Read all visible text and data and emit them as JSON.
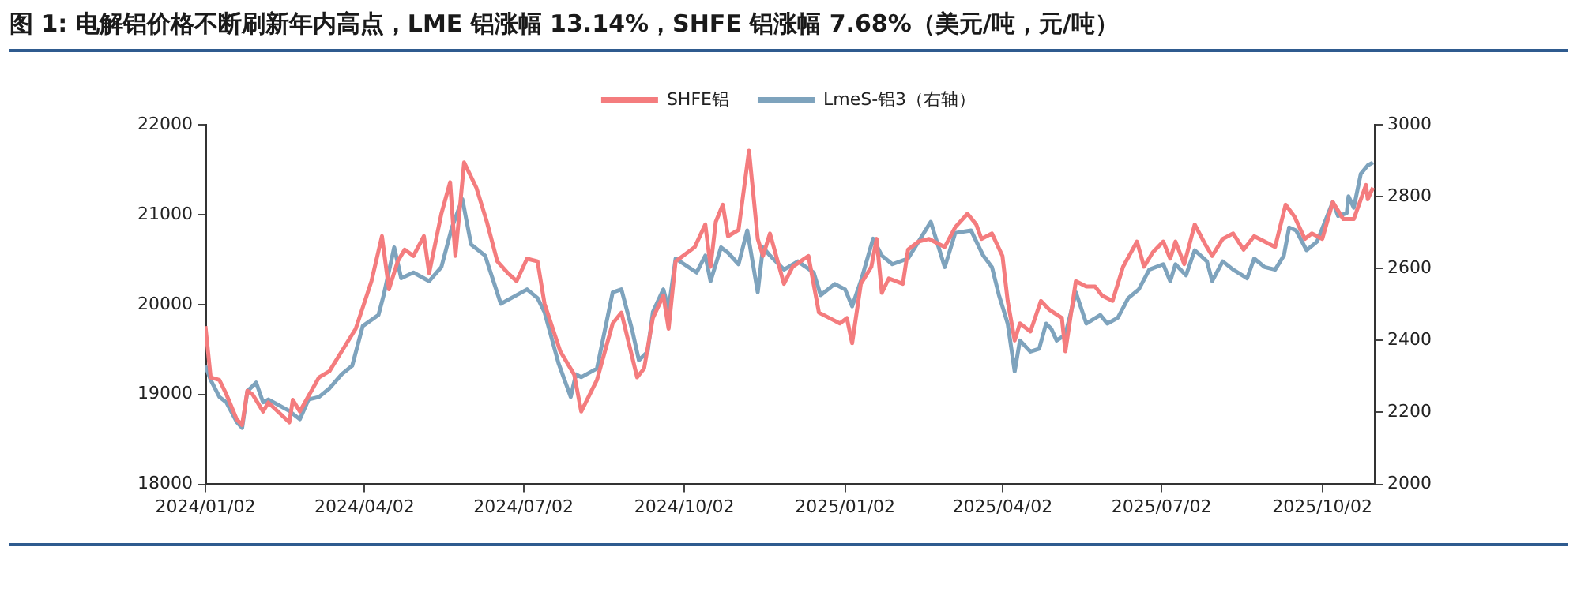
{
  "chart_data": {
    "type": "line",
    "title": "图 1: 电解铝价格不断刷新年内高点，LME 铝涨幅 13.14%，SHFE 铝涨幅 7.68%（美元/吨，元/吨）",
    "series": [
      {
        "name": "SHFE铝",
        "color": "#f47c7e",
        "axis": "y",
        "x": [
          "2024-01-02",
          "2024-01-05",
          "2024-01-10",
          "2024-01-14",
          "2024-01-20",
          "2024-01-23",
          "2024-01-26",
          "2024-01-29",
          "2024-02-04",
          "2024-02-07",
          "2024-02-19",
          "2024-02-21",
          "2024-02-25",
          "2024-03-07",
          "2024-03-13",
          "2024-03-20",
          "2024-03-28",
          "2024-04-06",
          "2024-04-12",
          "2024-04-16",
          "2024-04-21",
          "2024-04-25",
          "2024-04-30",
          "2024-05-06",
          "2024-05-09",
          "2024-05-16",
          "2024-05-21",
          "2024-05-24",
          "2024-05-29",
          "2024-06-02",
          "2024-06-05",
          "2024-06-11",
          "2024-06-17",
          "2024-06-23",
          "2024-06-28",
          "2024-07-04",
          "2024-07-10",
          "2024-07-14",
          "2024-07-23",
          "2024-07-31",
          "2024-08-04",
          "2024-08-13",
          "2024-08-22",
          "2024-08-27",
          "2024-09-05",
          "2024-09-09",
          "2024-09-14",
          "2024-09-20",
          "2024-09-23",
          "2024-09-27",
          "2024-10-08",
          "2024-10-14",
          "2024-10-17",
          "2024-10-20",
          "2024-10-24",
          "2024-10-27",
          "2024-11-02",
          "2024-11-08",
          "2024-11-13",
          "2024-11-16",
          "2024-11-20",
          "2024-11-28",
          "2024-12-03",
          "2024-12-12",
          "2024-12-18",
          "2024-12-24",
          "2024-12-30",
          "2025-01-03",
          "2025-01-06",
          "2025-01-11",
          "2025-01-17",
          "2025-01-20",
          "2025-01-23",
          "2025-01-27",
          "2025-02-04",
          "2025-02-07",
          "2025-02-13",
          "2025-02-19",
          "2025-02-28",
          "2025-03-06",
          "2025-03-13",
          "2025-03-18",
          "2025-03-21",
          "2025-03-27",
          "2025-04-02",
          "2025-04-05",
          "2025-04-09",
          "2025-04-12",
          "2025-04-18",
          "2025-04-24",
          "2025-04-29",
          "2025-05-06",
          "2025-05-08",
          "2025-05-14",
          "2025-05-20",
          "2025-05-25",
          "2025-05-29",
          "2025-06-04",
          "2025-06-10",
          "2025-06-18",
          "2025-06-22",
          "2025-06-27",
          "2025-07-03",
          "2025-07-07",
          "2025-07-10",
          "2025-07-15",
          "2025-07-21",
          "2025-07-27",
          "2025-07-31",
          "2025-08-06",
          "2025-08-12",
          "2025-08-18",
          "2025-08-24",
          "2025-08-30",
          "2025-09-05",
          "2025-09-11",
          "2025-09-16",
          "2025-09-22",
          "2025-09-26",
          "2025-10-02",
          "2025-10-08",
          "2025-10-14",
          "2025-10-20",
          "2025-10-27",
          "2025-10-28",
          "2025-10-31"
        ],
        "values": [
          19760,
          19190,
          19160,
          19000,
          18720,
          18660,
          19040,
          19000,
          18810,
          18910,
          18690,
          18940,
          18810,
          19190,
          19260,
          19480,
          19730,
          20260,
          20760,
          20170,
          20480,
          20610,
          20540,
          20760,
          20350,
          21010,
          21360,
          20540,
          21580,
          21420,
          21300,
          20920,
          20480,
          20350,
          20260,
          20510,
          20480,
          20010,
          19480,
          19220,
          18810,
          19160,
          19790,
          19910,
          19190,
          19290,
          19850,
          20100,
          19730,
          20480,
          20640,
          20890,
          20420,
          20920,
          21110,
          20760,
          20830,
          21710,
          20730,
          20540,
          20790,
          20230,
          20420,
          20540,
          19910,
          19850,
          19790,
          19850,
          19570,
          20230,
          20420,
          20730,
          20130,
          20290,
          20230,
          20610,
          20700,
          20730,
          20640,
          20860,
          21010,
          20890,
          20730,
          20790,
          20540,
          20040,
          19600,
          19790,
          19700,
          20040,
          19940,
          19850,
          19480,
          20260,
          20200,
          20200,
          20100,
          20040,
          20420,
          20700,
          20420,
          20580,
          20700,
          20510,
          20700,
          20450,
          20890,
          20670,
          20540,
          20730,
          20790,
          20610,
          20760,
          20700,
          20640,
          21110,
          20980,
          20730,
          20790,
          20730,
          21140,
          20950,
          20950,
          21330,
          21170,
          21300
        ]
      },
      {
        "name": "LmeS-铝3（右轴）",
        "color": "#7ea3bd",
        "axis": "y2",
        "x": [
          "2024-01-02",
          "2024-01-05",
          "2024-01-10",
          "2024-01-14",
          "2024-01-20",
          "2024-01-23",
          "2024-01-26",
          "2024-01-31",
          "2024-02-04",
          "2024-02-07",
          "2024-02-19",
          "2024-02-25",
          "2024-03-01",
          "2024-03-07",
          "2024-03-13",
          "2024-03-20",
          "2024-03-26",
          "2024-04-01",
          "2024-04-10",
          "2024-04-13",
          "2024-04-19",
          "2024-04-23",
          "2024-04-30",
          "2024-05-09",
          "2024-05-16",
          "2024-05-22",
          "2024-05-28",
          "2024-06-02",
          "2024-06-10",
          "2024-06-19",
          "2024-06-25",
          "2024-07-04",
          "2024-07-10",
          "2024-07-14",
          "2024-07-22",
          "2024-07-29",
          "2024-08-01",
          "2024-08-04",
          "2024-08-13",
          "2024-08-22",
          "2024-08-27",
          "2024-09-02",
          "2024-09-06",
          "2024-09-11",
          "2024-09-14",
          "2024-09-20",
          "2024-09-23",
          "2024-09-27",
          "2024-10-09",
          "2024-10-14",
          "2024-10-17",
          "2024-10-23",
          "2024-10-27",
          "2024-11-02",
          "2024-11-07",
          "2024-11-13",
          "2024-11-16",
          "2024-11-20",
          "2024-11-28",
          "2024-12-06",
          "2024-12-15",
          "2024-12-19",
          "2024-12-27",
          "2025-01-02",
          "2025-01-06",
          "2025-01-11",
          "2025-01-18",
          "2025-01-23",
          "2025-01-29",
          "2025-02-07",
          "2025-02-13",
          "2025-02-20",
          "2025-02-28",
          "2025-03-06",
          "2025-03-15",
          "2025-03-22",
          "2025-03-27",
          "2025-03-31",
          "2025-04-05",
          "2025-04-09",
          "2025-04-12",
          "2025-04-18",
          "2025-04-23",
          "2025-04-27",
          "2025-04-30",
          "2025-05-03",
          "2025-05-08",
          "2025-05-14",
          "2025-05-20",
          "2025-05-28",
          "2025-06-01",
          "2025-06-07",
          "2025-06-13",
          "2025-06-19",
          "2025-06-25",
          "2025-07-03",
          "2025-07-07",
          "2025-07-10",
          "2025-07-16",
          "2025-07-21",
          "2025-07-28",
          "2025-07-31",
          "2025-08-06",
          "2025-08-12",
          "2025-08-20",
          "2025-08-24",
          "2025-08-30",
          "2025-09-05",
          "2025-09-10",
          "2025-09-13",
          "2025-09-17",
          "2025-09-23",
          "2025-09-29",
          "2025-10-08",
          "2025-10-11",
          "2025-10-16",
          "2025-10-17",
          "2025-10-20",
          "2025-10-24",
          "2025-10-28",
          "2025-10-31"
        ],
        "values": [
          2330,
          2290,
          2243,
          2228,
          2173,
          2157,
          2259,
          2283,
          2228,
          2236,
          2204,
          2181,
          2236,
          2243,
          2267,
          2306,
          2330,
          2440,
          2471,
          2526,
          2659,
          2573,
          2589,
          2565,
          2604,
          2714,
          2793,
          2667,
          2636,
          2502,
          2518,
          2542,
          2518,
          2479,
          2337,
          2243,
          2306,
          2298,
          2322,
          2534,
          2542,
          2432,
          2345,
          2369,
          2479,
          2542,
          2487,
          2628,
          2589,
          2636,
          2565,
          2659,
          2644,
          2612,
          2706,
          2534,
          2659,
          2636,
          2597,
          2620,
          2589,
          2526,
          2557,
          2542,
          2495,
          2565,
          2683,
          2636,
          2612,
          2628,
          2675,
          2730,
          2604,
          2699,
          2706,
          2636,
          2604,
          2526,
          2447,
          2314,
          2400,
          2369,
          2377,
          2447,
          2432,
          2400,
          2416,
          2534,
          2447,
          2471,
          2447,
          2463,
          2518,
          2542,
          2597,
          2612,
          2565,
          2612,
          2581,
          2651,
          2620,
          2565,
          2620,
          2597,
          2573,
          2628,
          2604,
          2597,
          2636,
          2714,
          2706,
          2651,
          2675,
          2785,
          2746,
          2754,
          2801,
          2769,
          2863,
          2887,
          2895
        ]
      }
    ],
    "xlim": [
      "2024-01-02",
      "2025-11-01"
    ],
    "xticks": [
      {
        "value": "2024-01-02",
        "label": "2024/01/02"
      },
      {
        "value": "2024-04-02",
        "label": "2024/04/02"
      },
      {
        "value": "2024-07-02",
        "label": "2024/07/02"
      },
      {
        "value": "2024-10-02",
        "label": "2024/10/02"
      },
      {
        "value": "2025-01-02",
        "label": "2025/01/02"
      },
      {
        "value": "2025-04-02",
        "label": "2025/04/02"
      },
      {
        "value": "2025-07-02",
        "label": "2025/07/02"
      },
      {
        "value": "2025-10-02",
        "label": "2025/10/02"
      }
    ],
    "ylim": [
      18000,
      22000
    ],
    "yticks": [
      18000,
      19000,
      20000,
      21000,
      22000
    ],
    "y2lim": [
      2000,
      3000
    ],
    "y2ticks": [
      2000,
      2200,
      2400,
      2600,
      2800,
      3000
    ],
    "legend": "top",
    "grid": false
  }
}
